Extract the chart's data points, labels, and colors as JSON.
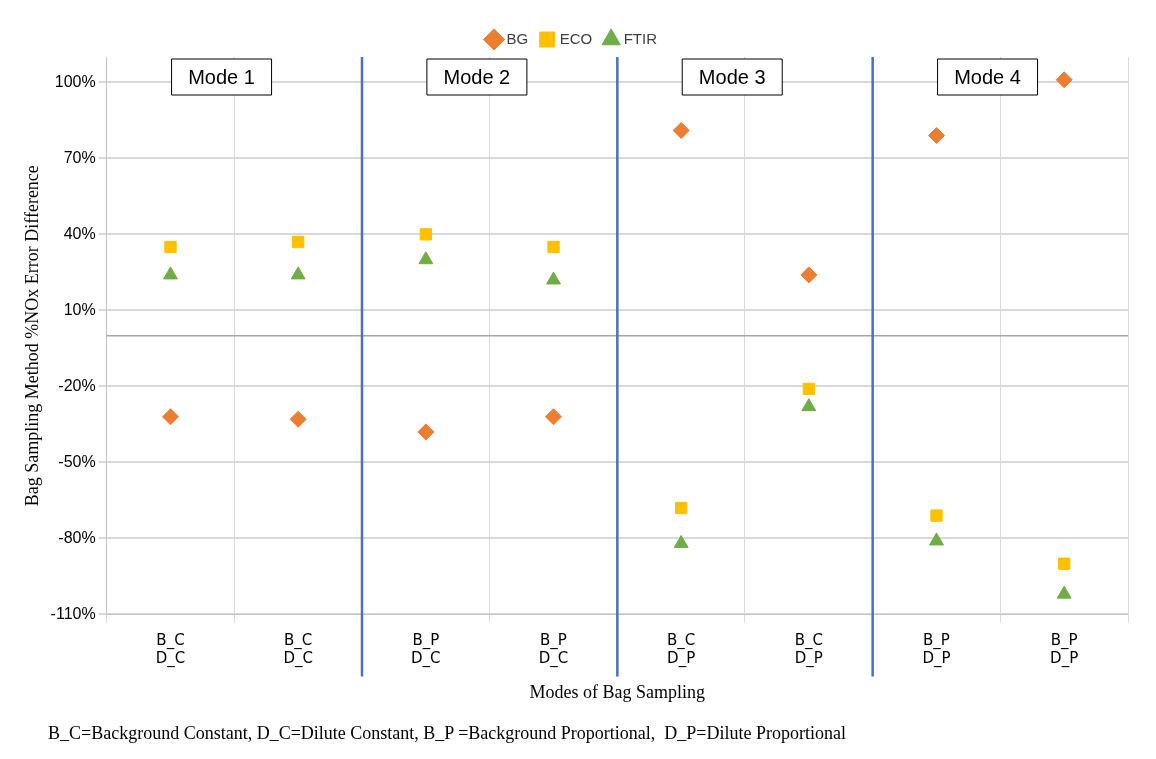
{
  "chart_data": {
    "type": "scatter",
    "xlabel": "Modes of Bag Sampling",
    "ylabel": "Bag Sampling Method %NOx Error Difference",
    "categories": [
      "B_C\nD_C",
      "B_C\nD_C",
      "B_P\nD_C",
      "B_P\nD_C",
      "B_C\nD_P",
      "B_C\nD_P",
      "B_P\nD_P",
      "B_P\nD_P"
    ],
    "series": [
      {
        "name": "BG",
        "color": "#ed7d31",
        "marker": "diamond",
        "values": [
          -32,
          -33,
          -38,
          -32,
          81,
          24,
          79,
          101
        ]
      },
      {
        "name": "ECO",
        "color": "#ffc000",
        "marker": "square",
        "values": [
          35,
          37,
          40,
          35,
          -68,
          -21,
          -71,
          -90
        ]
      },
      {
        "name": "FTIR",
        "color": "#70ad47",
        "marker": "triangle",
        "values": [
          24,
          24,
          30,
          22,
          -82,
          -28,
          -81,
          -102
        ]
      }
    ],
    "ylim": [
      -110,
      110
    ],
    "yticks": [
      {
        "value": -110,
        "label": "-110%"
      },
      {
        "value": -80,
        "label": "-80%"
      },
      {
        "value": -50,
        "label": "-50%"
      },
      {
        "value": -20,
        "label": "-20%"
      },
      {
        "value": 10,
        "label": "10%"
      },
      {
        "value": 40,
        "label": "40%"
      },
      {
        "value": 70,
        "label": "70%"
      },
      {
        "value": 100,
        "label": "100%"
      }
    ],
    "grid": true,
    "legend": "top",
    "annotations": [
      "Mode 1",
      "Mode 2",
      "Mode 3",
      "Mode 4",
      "B_C=Background Constant, D_C=Dilute Constant, B_P =Background Proportional,  D_P=Dilute Proportional"
    ]
  }
}
